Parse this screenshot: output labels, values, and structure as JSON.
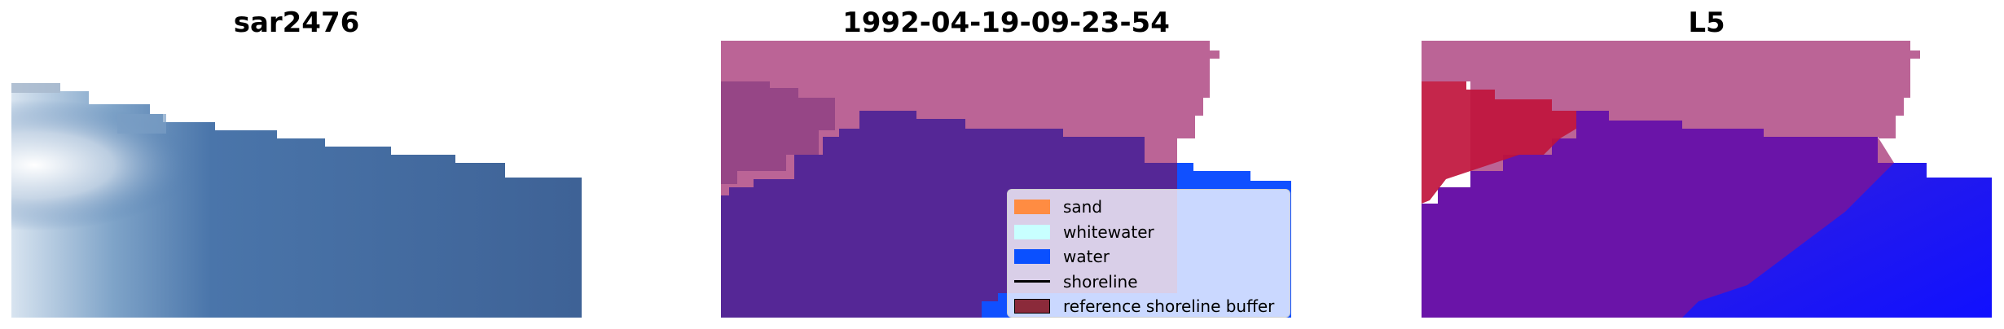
{
  "panels": [
    {
      "title": "sar2476"
    },
    {
      "title": "1992-04-19-09-23-54"
    },
    {
      "title": "L5"
    }
  ],
  "legend": {
    "items": [
      {
        "label": "sand",
        "color": "#ff8c42",
        "kind": "patch"
      },
      {
        "label": "whitewater",
        "color": "#c8ffff",
        "kind": "patch"
      },
      {
        "label": "water",
        "color": "#0a50ff",
        "kind": "patch"
      },
      {
        "label": "shoreline",
        "color": "#000000",
        "kind": "line"
      },
      {
        "label": "reference shoreline buffer",
        "color": "#8b2a3a",
        "kind": "patch"
      }
    ]
  }
}
